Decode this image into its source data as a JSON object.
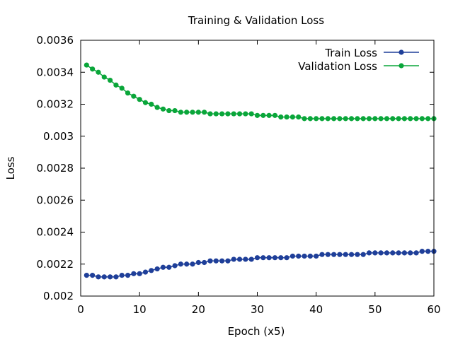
{
  "chart_data": {
    "type": "line",
    "title": "Training & Validation Loss",
    "xlabel": "Epoch (x5)",
    "ylabel": "Loss",
    "xlim": [
      0,
      60
    ],
    "ylim": [
      0.002,
      0.0036
    ],
    "x_ticks": [
      0,
      10,
      20,
      30,
      40,
      50,
      60
    ],
    "x_tick_labels": [
      "0",
      "10",
      "20",
      "30",
      "40",
      "50",
      "60"
    ],
    "y_ticks": [
      0.002,
      0.0022,
      0.0024,
      0.0026,
      0.0028,
      0.003,
      0.0032,
      0.0034,
      0.0036
    ],
    "y_tick_labels": [
      "0.002",
      "0.0022",
      "0.0024",
      "0.0026",
      "0.0028",
      "0.003",
      "0.0032",
      "0.0034",
      "0.0036"
    ],
    "grid": false,
    "legend_position": "top-right",
    "x": [
      1,
      2,
      3,
      4,
      5,
      6,
      7,
      8,
      9,
      10,
      11,
      12,
      13,
      14,
      15,
      16,
      17,
      18,
      19,
      20,
      21,
      22,
      23,
      24,
      25,
      26,
      27,
      28,
      29,
      30,
      31,
      32,
      33,
      34,
      35,
      36,
      37,
      38,
      39,
      40,
      41,
      42,
      43,
      44,
      45,
      46,
      47,
      48,
      49,
      50,
      51,
      52,
      53,
      54,
      55,
      56,
      57,
      58,
      59,
      60
    ],
    "series": [
      {
        "name": "Train Loss",
        "color": "#1f3f99",
        "marker": "circle",
        "values": [
          0.00213,
          0.00213,
          0.00212,
          0.00212,
          0.00212,
          0.00212,
          0.00213,
          0.00213,
          0.00214,
          0.00214,
          0.00215,
          0.00216,
          0.00217,
          0.00218,
          0.00218,
          0.00219,
          0.0022,
          0.0022,
          0.0022,
          0.00221,
          0.00221,
          0.00222,
          0.00222,
          0.00222,
          0.00222,
          0.00223,
          0.00223,
          0.00223,
          0.00223,
          0.00224,
          0.00224,
          0.00224,
          0.00224,
          0.00224,
          0.00224,
          0.00225,
          0.00225,
          0.00225,
          0.00225,
          0.00225,
          0.00226,
          0.00226,
          0.00226,
          0.00226,
          0.00226,
          0.00226,
          0.00226,
          0.00226,
          0.00227,
          0.00227,
          0.00227,
          0.00227,
          0.00227,
          0.00227,
          0.00227,
          0.00227,
          0.00227,
          0.00228,
          0.00228,
          0.00228
        ]
      },
      {
        "name": "Validation Loss",
        "color": "#0aa63a",
        "marker": "circle",
        "values": [
          0.003445,
          0.00342,
          0.0034,
          0.00337,
          0.00335,
          0.00332,
          0.0033,
          0.00327,
          0.00325,
          0.00323,
          0.00321,
          0.0032,
          0.00318,
          0.00317,
          0.00316,
          0.00316,
          0.00315,
          0.00315,
          0.00315,
          0.00315,
          0.00315,
          0.00314,
          0.00314,
          0.00314,
          0.00314,
          0.00314,
          0.00314,
          0.00314,
          0.00314,
          0.00313,
          0.00313,
          0.00313,
          0.00313,
          0.00312,
          0.00312,
          0.00312,
          0.00312,
          0.00311,
          0.00311,
          0.00311,
          0.00311,
          0.00311,
          0.00311,
          0.00311,
          0.00311,
          0.00311,
          0.00311,
          0.00311,
          0.00311,
          0.00311,
          0.00311,
          0.00311,
          0.00311,
          0.00311,
          0.00311,
          0.00311,
          0.00311,
          0.00311,
          0.00311,
          0.00311
        ]
      }
    ]
  }
}
